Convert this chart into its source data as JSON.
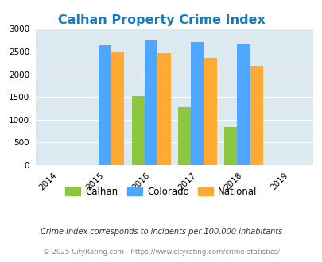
{
  "title": "Calhan Property Crime Index",
  "years": [
    2014,
    2015,
    2016,
    2017,
    2018,
    2019
  ],
  "bar_years": [
    2015,
    2016,
    2017,
    2018
  ],
  "calhan": [
    0,
    1515,
    1270,
    830
  ],
  "colorado": [
    2640,
    2745,
    2700,
    2660
  ],
  "national": [
    2500,
    2465,
    2360,
    2190
  ],
  "calhan_color": "#8dc63f",
  "colorado_color": "#4da6ff",
  "national_color": "#ffaa33",
  "background_color": "#dce9f0",
  "ylim": [
    0,
    3000
  ],
  "yticks": [
    0,
    500,
    1000,
    1500,
    2000,
    2500,
    3000
  ],
  "title_color": "#1a7ab5",
  "title_fontsize": 11.5,
  "footnote1": "Crime Index corresponds to incidents per 100,000 inhabitants",
  "footnote2": "© 2025 CityRating.com - https://www.cityrating.com/crime-statistics/",
  "legend_labels": [
    "Calhan",
    "Colorado",
    "National"
  ],
  "bar_width": 0.28
}
